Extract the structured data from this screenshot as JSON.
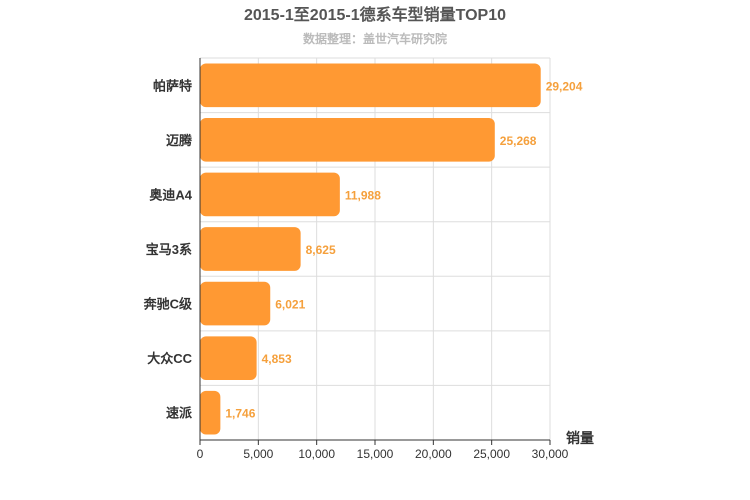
{
  "chart_data": {
    "type": "bar",
    "orientation": "horizontal",
    "title": "2015-1至2015-1德系车型销量TOP10",
    "subtitle": "数据整理：盖世汽车研究院",
    "xlabel": "销量",
    "ylabel": "",
    "categories": [
      "帕萨特",
      "迈腾",
      "奥迪A4",
      "宝马3系",
      "奔驰C级",
      "大众CC",
      "速派"
    ],
    "values": [
      29204,
      25268,
      11988,
      8625,
      6021,
      4853,
      1746
    ],
    "value_labels": [
      "29,204",
      "25,268",
      "11,988",
      "8,625",
      "6,021",
      "4,853",
      "1,746"
    ],
    "xlim": [
      0,
      30000
    ],
    "xticks": [
      0,
      5000,
      10000,
      15000,
      20000,
      25000,
      30000
    ],
    "xtick_labels": [
      "0",
      "5,000",
      "10,000",
      "15,000",
      "20,000",
      "25,000",
      "30,000"
    ],
    "grid": true,
    "colors": {
      "bar": "#ff9933",
      "value_label": "#f5a03c",
      "grid": "#dddddd",
      "axis": "#333333"
    }
  }
}
